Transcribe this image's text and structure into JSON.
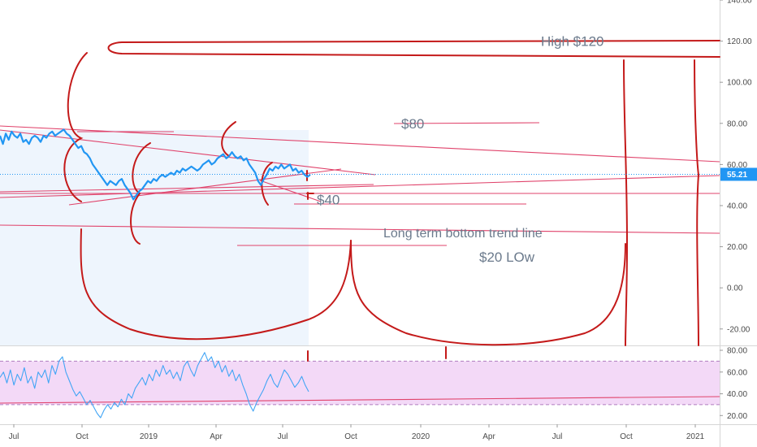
{
  "chart_data": {
    "type": "line",
    "price_axis": {
      "range": [
        -28,
        140
      ],
      "ticks": [
        140,
        120,
        100,
        80,
        60,
        40,
        20,
        0,
        -20
      ],
      "tick_labels": [
        "140.00",
        "120.00",
        "100.00",
        "80.00",
        "60.00",
        "40.00",
        "20.00",
        "0.00",
        "-20.00"
      ]
    },
    "time_axis": {
      "labels": [
        "Jul",
        "Oct",
        "2019",
        "Apr",
        "Jul",
        "Oct",
        "2020",
        "Apr",
        "Jul",
        "Oct",
        "2021"
      ]
    },
    "last_price": {
      "value": 55.21,
      "label": "55.21",
      "color": "#2196f3"
    },
    "price_series_color": "#2196f3",
    "price_series": [
      74,
      70,
      75,
      72,
      76,
      74,
      73,
      75,
      71,
      72,
      70,
      73,
      74,
      73,
      71,
      74,
      73,
      75,
      76,
      74,
      75,
      76,
      77,
      75,
      74,
      72,
      70,
      68,
      69,
      66,
      65,
      63,
      60,
      58,
      56,
      54,
      52,
      50,
      52,
      51,
      50,
      52,
      53,
      50,
      48,
      46,
      43,
      45,
      47,
      48,
      50,
      52,
      51,
      53,
      52,
      54,
      55,
      54,
      55,
      56,
      55,
      57,
      56,
      58,
      57,
      58,
      59,
      58,
      57,
      58,
      60,
      61,
      62,
      60,
      61,
      63,
      64,
      65,
      63,
      64,
      66,
      64,
      63,
      64,
      62,
      63,
      60,
      58,
      56,
      52,
      50,
      53,
      55,
      58,
      57,
      59,
      58,
      60,
      58,
      59,
      60,
      57,
      58,
      56,
      57,
      55,
      54,
      55
    ],
    "rsi_axis": {
      "range": [
        12,
        83
      ],
      "ticks": [
        80,
        60,
        40,
        20
      ],
      "tick_labels": [
        "80.00",
        "60.00",
        "40.00",
        "20.00"
      ],
      "upper_band": 70,
      "lower_band": 30
    },
    "rsi_series": [
      55,
      60,
      50,
      62,
      48,
      58,
      52,
      64,
      50,
      56,
      45,
      60,
      55,
      62,
      50,
      66,
      58,
      70,
      74,
      60,
      52,
      44,
      38,
      42,
      36,
      30,
      34,
      28,
      22,
      18,
      25,
      30,
      26,
      32,
      28,
      35,
      30,
      40,
      36,
      45,
      50,
      55,
      48,
      58,
      52,
      62,
      56,
      66,
      58,
      62,
      54,
      60,
      52,
      65,
      70,
      62,
      56,
      66,
      72,
      78,
      70,
      74,
      64,
      70,
      60,
      66,
      56,
      62,
      52,
      58,
      48,
      40,
      30,
      24,
      32,
      38,
      44,
      52,
      58,
      50,
      46,
      54,
      62,
      58,
      52,
      46,
      50,
      56,
      48,
      42
    ],
    "annotations": [
      {
        "text": "High $120",
        "price": 120
      },
      {
        "text": "$80",
        "price": 80
      },
      {
        "text": "$40",
        "price": 43
      },
      {
        "text": "Long term bottom trend line",
        "price": 27
      },
      {
        "text": "$20 LOw",
        "price": 15
      }
    ]
  },
  "colors": {
    "drawing_red": "#c41a1a",
    "trend_pink": "#e0436b",
    "rsi_line": "#42a5f5",
    "rsi_band_fill": "#f3d9f7",
    "rsi_band_line": "#b07cc0",
    "history_fill": "#eef5fd"
  }
}
